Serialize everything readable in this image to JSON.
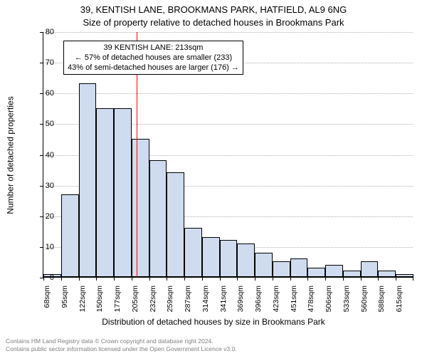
{
  "titles": {
    "line1": "39, KENTISH LANE, BROOKMANS PARK, HATFIELD, AL9 6NG",
    "line2": "Size of property relative to detached houses in Brookmans Park"
  },
  "axes": {
    "ylabel": "Number of detached properties",
    "xlabel": "Distribution of detached houses by size in Brookmans Park",
    "ymin": 0,
    "ymax": 80,
    "ytick_step": 10,
    "ytick_labels": [
      "0",
      "10",
      "20",
      "30",
      "40",
      "50",
      "60",
      "70",
      "80"
    ],
    "grid_color": "#b0b0b0"
  },
  "bars": {
    "fill": "#cfdcef",
    "stroke": "#000000",
    "categories": [
      "68sqm",
      "95sqm",
      "122sqm",
      "150sqm",
      "177sqm",
      "205sqm",
      "232sqm",
      "259sqm",
      "287sqm",
      "314sqm",
      "341sqm",
      "369sqm",
      "396sqm",
      "423sqm",
      "451sqm",
      "478sqm",
      "506sqm",
      "533sqm",
      "560sqm",
      "588sqm",
      "615sqm"
    ],
    "values": [
      1,
      27,
      63,
      55,
      55,
      45,
      38,
      34,
      16,
      13,
      12,
      11,
      8,
      5,
      6,
      3,
      4,
      2,
      5,
      2,
      1
    ]
  },
  "reference_line": {
    "color": "#ff0000",
    "after_index": 5
  },
  "annotation": {
    "line1": "39 KENTISH LANE: 213sqm",
    "line2": "← 57% of detached houses are smaller (233)",
    "line3": "43% of semi-detached houses are larger (176) →"
  },
  "footer": {
    "line1": "Contains HM Land Registry data © Crown copyright and database right 2024.",
    "line2": "Contains public sector information licensed under the Open Government Licence v3.0."
  },
  "style": {
    "bg": "#ffffff",
    "title_fontsize": 13,
    "axis_label_fontsize": 12,
    "tick_fontsize": 11,
    "anno_fontsize": 11,
    "footer_color": "#808080"
  }
}
